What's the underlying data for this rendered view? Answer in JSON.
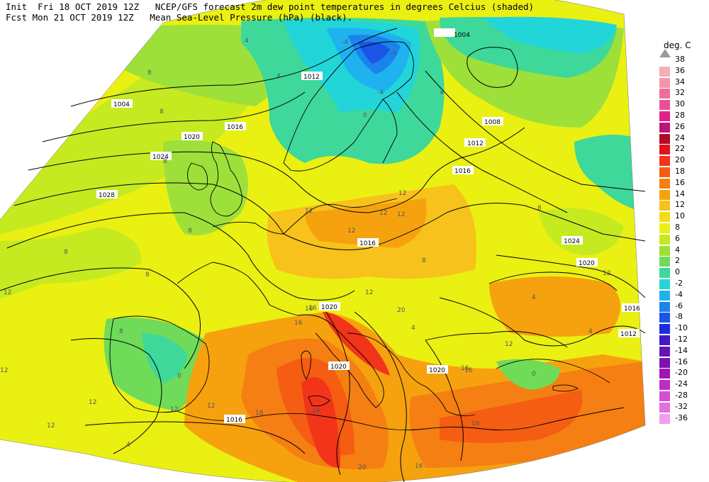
{
  "header": {
    "line1": "Init  Fri 18 OCT 2019 12Z   NCEP/GFS forecast 2m dew point temperatures in degrees Celcius (shaded)",
    "line2": "Fcst Mon 21 OCT 2019 12Z   Mean Sea-Level Pressure (hPa) (black)."
  },
  "legend": {
    "title": "deg. C",
    "levels": [
      {
        "label": "38",
        "color": ""
      },
      {
        "label": "36",
        "color": "#f7aeb2"
      },
      {
        "label": "34",
        "color": "#f495a9"
      },
      {
        "label": "32",
        "color": "#ef6f9c"
      },
      {
        "label": "30",
        "color": "#ea4f95"
      },
      {
        "label": "28",
        "color": "#e2208b"
      },
      {
        "label": "26",
        "color": "#c01378"
      },
      {
        "label": "24",
        "color": "#b30a2a"
      },
      {
        "label": "22",
        "color": "#e1101a"
      },
      {
        "label": "20",
        "color": "#f1341a"
      },
      {
        "label": "18",
        "color": "#f45d12"
      },
      {
        "label": "16",
        "color": "#f57f12"
      },
      {
        "label": "14",
        "color": "#f6a20e"
      },
      {
        "label": "12",
        "color": "#f7c21b"
      },
      {
        "label": "10",
        "color": "#f3de14"
      },
      {
        "label": "8",
        "color": "#eaf012"
      },
      {
        "label": "6",
        "color": "#c6ea20"
      },
      {
        "label": "4",
        "color": "#9ee03a"
      },
      {
        "label": "2",
        "color": "#6fdb58"
      },
      {
        "label": "0",
        "color": "#3ed89a"
      },
      {
        "label": "-2",
        "color": "#22d5d9"
      },
      {
        "label": "-4",
        "color": "#1eb3ef"
      },
      {
        "label": "-6",
        "color": "#1a84ec"
      },
      {
        "label": "-8",
        "color": "#1a55e8"
      },
      {
        "label": "-10",
        "color": "#1a2be1"
      },
      {
        "label": "-12",
        "color": "#4117c8"
      },
      {
        "label": "-14",
        "color": "#6512b8"
      },
      {
        "label": "-16",
        "color": "#8010b0"
      },
      {
        "label": "-20",
        "color": "#a213b8"
      },
      {
        "label": "-24",
        "color": "#c22bc4"
      },
      {
        "label": "-28",
        "color": "#d74ed4"
      },
      {
        "label": "-32",
        "color": "#e36fe1"
      },
      {
        "label": "-36",
        "color": "#f09ff0"
      }
    ]
  },
  "isobar_labels": [
    "1004",
    "1008",
    "1012",
    "1016",
    "1020",
    "1024",
    "1028"
  ],
  "isobar_label_instances": [
    {
      "text": "1004"
    },
    {
      "text": "1008"
    },
    {
      "text": "1012"
    },
    {
      "text": "1016"
    },
    {
      "text": "1020"
    },
    {
      "text": "1024"
    },
    {
      "text": "1028"
    },
    {
      "text": "1016"
    },
    {
      "text": "1008"
    },
    {
      "text": "1012"
    },
    {
      "text": "1016"
    },
    {
      "text": "1024"
    },
    {
      "text": "1020"
    },
    {
      "text": "1016"
    },
    {
      "text": "1012"
    },
    {
      "text": "1020"
    },
    {
      "text": "1020"
    },
    {
      "text": "1020"
    },
    {
      "text": "1016"
    },
    {
      "text": "1004"
    },
    {
      "text": "1012"
    }
  ],
  "dewpoint_labels": [
    {
      "text": "4"
    },
    {
      "text": "8"
    },
    {
      "text": "8"
    },
    {
      "text": "8"
    },
    {
      "text": "12"
    },
    {
      "text": "12"
    },
    {
      "text": "16"
    },
    {
      "text": "12"
    },
    {
      "text": "12"
    },
    {
      "text": "8"
    },
    {
      "text": "8"
    },
    {
      "text": "8"
    },
    {
      "text": "12"
    },
    {
      "text": "12"
    },
    {
      "text": "12"
    },
    {
      "text": "16"
    },
    {
      "text": "16"
    },
    {
      "text": "16"
    },
    {
      "text": "20"
    },
    {
      "text": "24"
    },
    {
      "text": "20"
    },
    {
      "text": "16"
    },
    {
      "text": "16"
    },
    {
      "text": "16"
    },
    {
      "text": "12"
    },
    {
      "text": "12"
    },
    {
      "text": "12"
    },
    {
      "text": "4"
    },
    {
      "text": "4"
    },
    {
      "text": "0"
    },
    {
      "text": "4"
    },
    {
      "text": "-4"
    },
    {
      "text": "-4"
    },
    {
      "text": "0"
    },
    {
      "text": "4"
    },
    {
      "text": "4"
    },
    {
      "text": "8"
    },
    {
      "text": "8"
    },
    {
      "text": "12"
    },
    {
      "text": "4"
    },
    {
      "text": "0"
    },
    {
      "text": "12"
    },
    {
      "text": "16"
    },
    {
      "text": "12"
    },
    {
      "text": "8"
    },
    {
      "text": "12"
    },
    {
      "text": "-4"
    }
  ]
}
